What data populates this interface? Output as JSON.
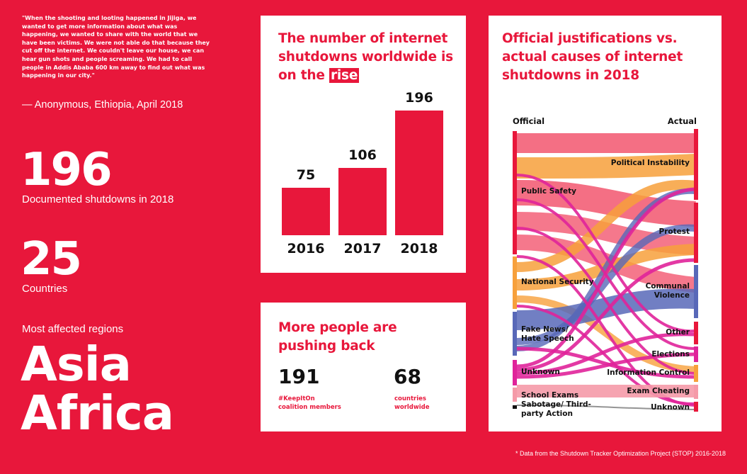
{
  "quote": {
    "text": "\"When the shooting and looting happened in Jijiga, we wanted to get more information about what was happening, we wanted to share with the world that we have been victims.  We were not able do that because they cut off the internet. We couldn't leave our house, we can hear gun shots and people screaming. We had to call people in Addis Ababa 600 km away to find out what was happening in our city.\"",
    "attribution": "— Anonymous, Ethiopia, April 2018"
  },
  "stats": {
    "shutdowns_value": "196",
    "shutdowns_label": "Documented shutdowns in 2018",
    "countries_value": "25",
    "countries_label": "Countries"
  },
  "regions": {
    "label": "Most affected regions",
    "items": [
      "Asia",
      "Africa"
    ]
  },
  "trend": {
    "title_pre": "The number of internet shutdowns worldwide is on the",
    "title_highlight": "rise"
  },
  "chart_data": {
    "type": "bar",
    "categories": [
      "2016",
      "2017",
      "2018"
    ],
    "values": [
      75,
      106,
      196
    ],
    "title": "The number of internet shutdowns worldwide is on the rise",
    "colors": {
      "bar": "#e8173b"
    }
  },
  "pushback": {
    "title": "More people are pushing back",
    "stats": [
      {
        "value": "191",
        "label_1": "#KeepItOn",
        "label_2": "coalition members"
      },
      {
        "value": "68",
        "label_1": "countries",
        "label_2": "worldwide"
      }
    ]
  },
  "sankey": {
    "title": "Official justifications vs. actual causes of internet shutdowns in 2018",
    "official_header": "Official",
    "actual_header": "Actual",
    "official": [
      "Public Safety",
      "National Security",
      "Fake News/ Hate Speech",
      "Unknown",
      "School Exams",
      "Sabotage/ Third-party Action"
    ],
    "actual": [
      "Political Instability",
      "Protest",
      "Communal Violence",
      "Other",
      "Elections",
      "Information Control",
      "Exam Cheating",
      "Unknown"
    ]
  },
  "footnote": "* Data from the Shutdown Tracker Optimization Project (STOP) 2016-2018",
  "colors": {
    "brand": "#e8173b",
    "orange": "#f7a03b",
    "blue": "#5868b8",
    "magenta": "#e0239a",
    "pink": "#f59aa8"
  }
}
